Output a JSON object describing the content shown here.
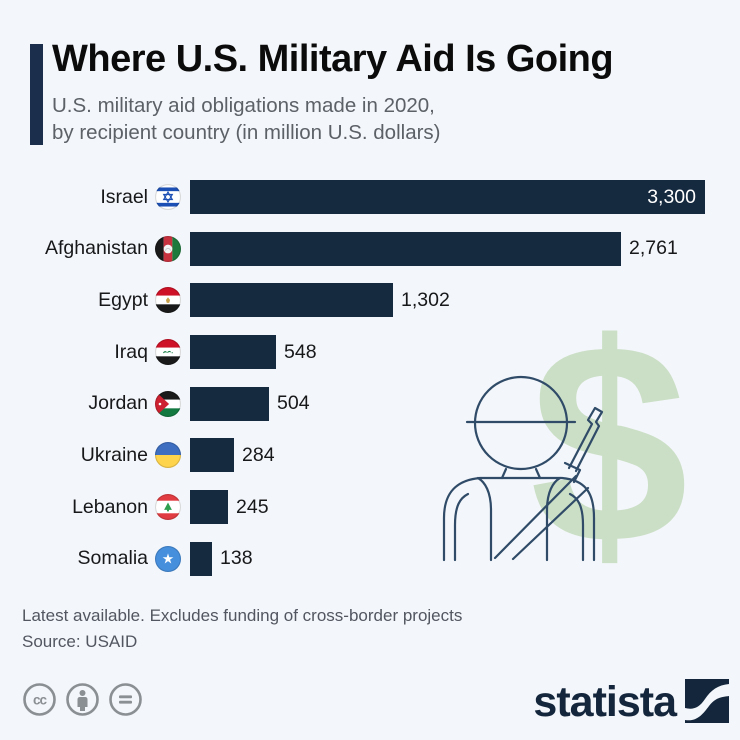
{
  "page": {
    "background_color": "#f3f6fa"
  },
  "header": {
    "title": "Where U.S. Military Aid Is Going",
    "subtitle_line1": "U.S. military aid obligations made in 2020,",
    "subtitle_line2": "by recipient country (in million U.S. dollars)",
    "accent_color": "#1b2e4c"
  },
  "chart_data": {
    "type": "bar",
    "orientation": "horizontal",
    "title": "Where U.S. Military Aid Is Going",
    "unit": "million U.S. dollars",
    "xlim": [
      0,
      3300
    ],
    "bar_color": "#15293f",
    "categories": [
      "Israel",
      "Afghanistan",
      "Egypt",
      "Iraq",
      "Jordan",
      "Ukraine",
      "Lebanon",
      "Somalia"
    ],
    "values": [
      3300,
      2761,
      1302,
      548,
      504,
      284,
      245,
      138
    ],
    "value_labels": [
      "3,300",
      "2,761",
      "1,302",
      "548",
      "504",
      "284",
      "245",
      "138"
    ],
    "value_inside": [
      true,
      false,
      false,
      false,
      false,
      false,
      false,
      false
    ],
    "flag_icons": [
      "israel-flag-icon",
      "afghanistan-flag-icon",
      "egypt-flag-icon",
      "iraq-flag-icon",
      "jordan-flag-icon",
      "ukraine-flag-icon",
      "lebanon-flag-icon",
      "somalia-flag-icon"
    ],
    "grid": false,
    "legend": false
  },
  "illustration": {
    "name": "soldier-with-rifle-and-dollar",
    "dollar_sign": "$",
    "dollar_color": "#cbdfc6",
    "outline_color": "#2f4b68"
  },
  "footer": {
    "note": "Latest available. Excludes funding of cross-border projects",
    "source": "Source: USAID",
    "license_icons": [
      "cc-icon",
      "attribution-icon",
      "no-derivatives-icon"
    ],
    "brand": "statista"
  }
}
